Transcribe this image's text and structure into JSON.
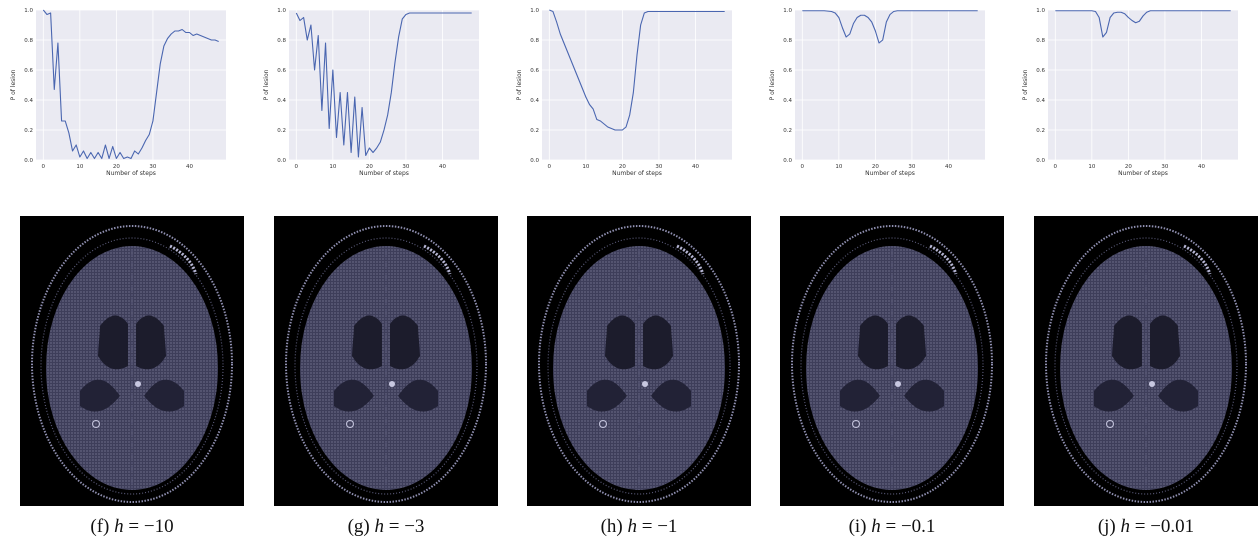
{
  "chart_data": [
    {
      "type": "line",
      "xlabel": "Number of steps",
      "ylabel": "P of lesion",
      "xticks": [
        0,
        10,
        20,
        30,
        40
      ],
      "yticks": [
        "0.0",
        "0.2",
        "0.4",
        "0.6",
        "0.8",
        "1.0"
      ],
      "xlim": [
        -2,
        50
      ],
      "ylim": [
        0,
        1
      ],
      "grid": true,
      "caption": {
        "tag": "(f)",
        "var": "h",
        "value": "= −10"
      },
      "series": [
        {
          "color": "#4a66b0",
          "x": [
            0,
            1,
            2,
            3,
            4,
            5,
            6,
            7,
            8,
            9,
            10,
            11,
            12,
            13,
            14,
            15,
            16,
            17,
            18,
            19,
            20,
            21,
            22,
            23,
            24,
            25,
            26,
            27,
            28,
            29,
            30,
            31,
            32,
            33,
            34,
            35,
            36,
            37,
            38,
            39,
            40,
            41,
            42,
            43,
            44,
            45,
            46,
            47,
            48
          ],
          "y": [
            1.0,
            0.97,
            0.98,
            0.47,
            0.78,
            0.26,
            0.26,
            0.18,
            0.06,
            0.1,
            0.02,
            0.06,
            0.01,
            0.05,
            0.01,
            0.05,
            0.01,
            0.1,
            0.01,
            0.09,
            0.01,
            0.05,
            0.01,
            0.02,
            0.01,
            0.06,
            0.04,
            0.08,
            0.13,
            0.17,
            0.26,
            0.45,
            0.64,
            0.76,
            0.81,
            0.84,
            0.86,
            0.86,
            0.87,
            0.85,
            0.85,
            0.83,
            0.84,
            0.83,
            0.82,
            0.81,
            0.8,
            0.8,
            0.79
          ]
        }
      ]
    },
    {
      "type": "line",
      "xlabel": "Number of steps",
      "ylabel": "P of lesion",
      "xticks": [
        0,
        10,
        20,
        30,
        40
      ],
      "yticks": [
        "0.0",
        "0.2",
        "0.4",
        "0.6",
        "0.8",
        "1.0"
      ],
      "xlim": [
        -2,
        50
      ],
      "ylim": [
        0,
        1
      ],
      "grid": true,
      "caption": {
        "tag": "(g)",
        "var": "h",
        "value": "= −3"
      },
      "series": [
        {
          "color": "#4a66b0",
          "x": [
            0,
            1,
            2,
            3,
            4,
            5,
            6,
            7,
            8,
            9,
            10,
            11,
            12,
            13,
            14,
            15,
            16,
            17,
            18,
            19,
            20,
            21,
            22,
            23,
            24,
            25,
            26,
            27,
            28,
            29,
            30,
            31,
            32,
            33,
            34,
            35,
            36,
            37,
            38,
            39,
            40,
            41,
            42,
            43,
            44,
            45,
            46,
            47,
            48
          ],
          "y": [
            0.98,
            0.93,
            0.95,
            0.8,
            0.9,
            0.6,
            0.83,
            0.33,
            0.78,
            0.21,
            0.6,
            0.15,
            0.45,
            0.1,
            0.45,
            0.05,
            0.42,
            0.02,
            0.35,
            0.03,
            0.08,
            0.05,
            0.08,
            0.12,
            0.2,
            0.3,
            0.45,
            0.65,
            0.82,
            0.94,
            0.97,
            0.98,
            0.98,
            0.98,
            0.98,
            0.98,
            0.98,
            0.98,
            0.98,
            0.98,
            0.98,
            0.98,
            0.98,
            0.98,
            0.98,
            0.98,
            0.98,
            0.98,
            0.98
          ]
        }
      ]
    },
    {
      "type": "line",
      "xlabel": "Number of steps",
      "ylabel": "P of lesion",
      "xticks": [
        0,
        10,
        20,
        30,
        40
      ],
      "yticks": [
        "0.0",
        "0.2",
        "0.4",
        "0.6",
        "0.8",
        "1.0"
      ],
      "xlim": [
        -2,
        50
      ],
      "ylim": [
        0,
        1
      ],
      "grid": true,
      "caption": {
        "tag": "(h)",
        "var": "h",
        "value": "= −1"
      },
      "series": [
        {
          "color": "#4a66b0",
          "x": [
            0,
            1,
            2,
            3,
            4,
            5,
            6,
            7,
            8,
            9,
            10,
            11,
            12,
            13,
            14,
            15,
            16,
            17,
            18,
            19,
            20,
            21,
            22,
            23,
            24,
            25,
            26,
            27,
            28,
            29,
            30,
            31,
            32,
            33,
            34,
            35,
            36,
            37,
            38,
            39,
            40,
            41,
            42,
            43,
            44,
            45,
            46,
            47,
            48
          ],
          "y": [
            1.0,
            0.99,
            0.92,
            0.84,
            0.78,
            0.72,
            0.66,
            0.6,
            0.54,
            0.48,
            0.42,
            0.37,
            0.34,
            0.27,
            0.26,
            0.24,
            0.22,
            0.21,
            0.2,
            0.2,
            0.2,
            0.22,
            0.3,
            0.45,
            0.7,
            0.9,
            0.98,
            0.99,
            0.99,
            0.99,
            0.99,
            0.99,
            0.99,
            0.99,
            0.99,
            0.99,
            0.99,
            0.99,
            0.99,
            0.99,
            0.99,
            0.99,
            0.99,
            0.99,
            0.99,
            0.99,
            0.99,
            0.99,
            0.99
          ]
        }
      ]
    },
    {
      "type": "line",
      "xlabel": "Number of steps",
      "ylabel": "P of lesion",
      "xticks": [
        0,
        10,
        20,
        30,
        40
      ],
      "yticks": [
        "0.0",
        "0.2",
        "0.4",
        "0.6",
        "0.8",
        "1.0"
      ],
      "xlim": [
        -2,
        50
      ],
      "ylim": [
        0,
        1
      ],
      "grid": true,
      "caption": {
        "tag": "(i)",
        "var": "h",
        "value": "= −0.1"
      },
      "series": [
        {
          "color": "#4a66b0",
          "x": [
            0,
            2,
            4,
            6,
            8,
            9,
            10,
            11,
            12,
            13,
            14,
            15,
            16,
            17,
            18,
            19,
            20,
            21,
            22,
            23,
            24,
            25,
            26,
            27,
            28,
            30,
            32,
            34,
            36,
            38,
            40,
            42,
            44,
            46,
            48
          ],
          "y": [
            0.995,
            0.995,
            0.995,
            0.995,
            0.99,
            0.98,
            0.95,
            0.88,
            0.82,
            0.84,
            0.91,
            0.95,
            0.965,
            0.965,
            0.95,
            0.92,
            0.86,
            0.78,
            0.8,
            0.92,
            0.97,
            0.99,
            0.995,
            0.995,
            0.995,
            0.995,
            0.995,
            0.995,
            0.995,
            0.995,
            0.995,
            0.995,
            0.995,
            0.995,
            0.995
          ]
        }
      ]
    },
    {
      "type": "line",
      "xlabel": "Number of steps",
      "ylabel": "P of lesion",
      "xticks": [
        0,
        10,
        20,
        30,
        40
      ],
      "yticks": [
        "0.0",
        "0.2",
        "0.4",
        "0.6",
        "0.8",
        "1.0"
      ],
      "xlim": [
        -2,
        50
      ],
      "ylim": [
        0,
        1
      ],
      "grid": true,
      "caption": {
        "tag": "(j)",
        "var": "h",
        "value": "= −0.01"
      },
      "series": [
        {
          "color": "#4a66b0",
          "x": [
            0,
            2,
            4,
            6,
            8,
            10,
            11,
            12,
            13,
            14,
            15,
            16,
            17,
            18,
            19,
            20,
            21,
            22,
            23,
            24,
            25,
            26,
            27,
            28,
            30,
            32,
            34,
            36,
            38,
            40,
            42,
            44,
            46,
            48
          ],
          "y": [
            0.995,
            0.995,
            0.995,
            0.995,
            0.995,
            0.995,
            0.99,
            0.95,
            0.82,
            0.85,
            0.95,
            0.98,
            0.985,
            0.985,
            0.975,
            0.95,
            0.93,
            0.915,
            0.925,
            0.96,
            0.985,
            0.995,
            0.995,
            0.995,
            0.995,
            0.995,
            0.995,
            0.995,
            0.995,
            0.995,
            0.995,
            0.995,
            0.995,
            0.995
          ]
        }
      ]
    }
  ],
  "colors": {
    "plot_bg": "#eaeaf2",
    "grid": "#ffffff",
    "line": "#4a66b0",
    "scan_bg": "#000000"
  }
}
